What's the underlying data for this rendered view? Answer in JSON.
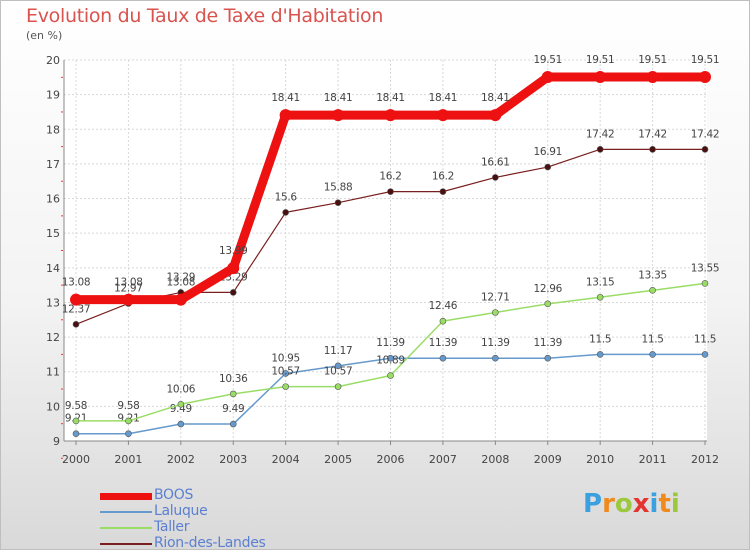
{
  "header": {
    "title": "Evolution du Taux de Taxe d'Habitation",
    "unit": "(en %)"
  },
  "chart_data": {
    "type": "line",
    "x": [
      "2000",
      "2001",
      "2002",
      "2003",
      "2004",
      "2005",
      "2006",
      "2007",
      "2008",
      "2009",
      "2010",
      "2011",
      "2012"
    ],
    "ylim": [
      9,
      20
    ],
    "yticks": [
      9,
      10,
      11,
      12,
      13,
      14,
      15,
      16,
      17,
      18,
      19,
      20
    ],
    "grid": true,
    "legend_position": "bottom-left",
    "series": [
      {
        "name": "BOOS",
        "color": "#ee1111",
        "values": [
          13.08,
          13.08,
          13.08,
          13.99,
          18.41,
          18.41,
          18.41,
          18.41,
          18.41,
          19.51,
          19.51,
          19.51,
          19.51
        ]
      },
      {
        "name": "Laluque",
        "color": "#6699cc",
        "values": [
          9.21,
          9.21,
          9.49,
          9.49,
          10.95,
          11.17,
          11.39,
          11.39,
          11.39,
          11.39,
          11.5,
          11.5,
          11.5
        ]
      },
      {
        "name": "Taller",
        "color": "#99dd66",
        "values": [
          9.58,
          9.58,
          10.06,
          10.36,
          10.57,
          10.57,
          10.89,
          12.46,
          12.71,
          12.96,
          13.15,
          13.35,
          13.55
        ]
      },
      {
        "name": "Rion-des-Landes",
        "color": "#7a1f1f",
        "values": [
          12.37,
          12.97,
          13.29,
          13.29,
          15.6,
          15.88,
          16.2,
          16.2,
          16.61,
          16.91,
          17.42,
          17.42,
          17.42
        ]
      }
    ]
  },
  "logo": {
    "letters": [
      "P",
      "r",
      "o",
      "x",
      "i",
      "t",
      "i"
    ],
    "colors": [
      "#3aa0e0",
      "#f08a1c",
      "#9bc83c",
      "#e3342f",
      "#3aa0e0",
      "#f08a1c",
      "#9bc83c"
    ]
  }
}
